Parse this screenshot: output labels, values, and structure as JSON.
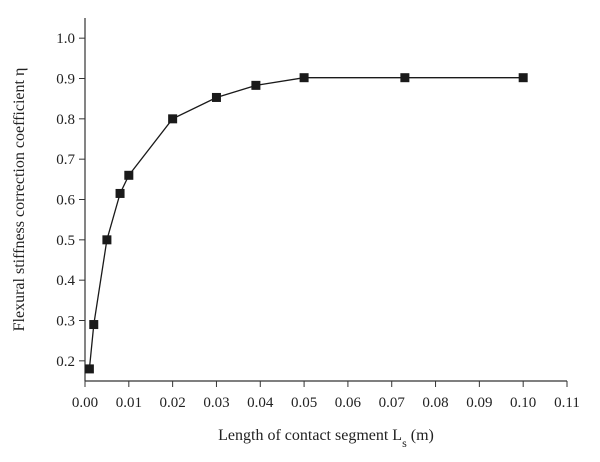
{
  "chart_data": {
    "type": "line",
    "xlabel": "Length of contact segment L",
    "xlabel_sub": "s",
    "xlabel_unit": " (m)",
    "ylabel": "Flexural stiffness correction coefficient η",
    "xlim": [
      0,
      0.11
    ],
    "ylim": [
      0.15,
      1.05
    ],
    "xticks": [
      "0.00",
      "0.01",
      "0.02",
      "0.03",
      "0.04",
      "0.05",
      "0.06",
      "0.07",
      "0.08",
      "0.09",
      "0.10",
      "0.11"
    ],
    "yticks": [
      "0.2",
      "0.3",
      "0.4",
      "0.5",
      "0.6",
      "0.7",
      "0.8",
      "0.9",
      "1.0"
    ],
    "grid": false,
    "marker": "square",
    "series": [
      {
        "x": [
          0.001,
          0.002,
          0.005,
          0.008,
          0.01,
          0.02,
          0.03,
          0.039,
          0.05,
          0.073,
          0.1
        ],
        "y": [
          0.18,
          0.29,
          0.5,
          0.615,
          0.66,
          0.8,
          0.853,
          0.883,
          0.902,
          0.902,
          0.902
        ]
      }
    ],
    "colors": {
      "line": "#1a1a1a",
      "marker": "#1a1a1a",
      "axis": "#333333"
    }
  }
}
